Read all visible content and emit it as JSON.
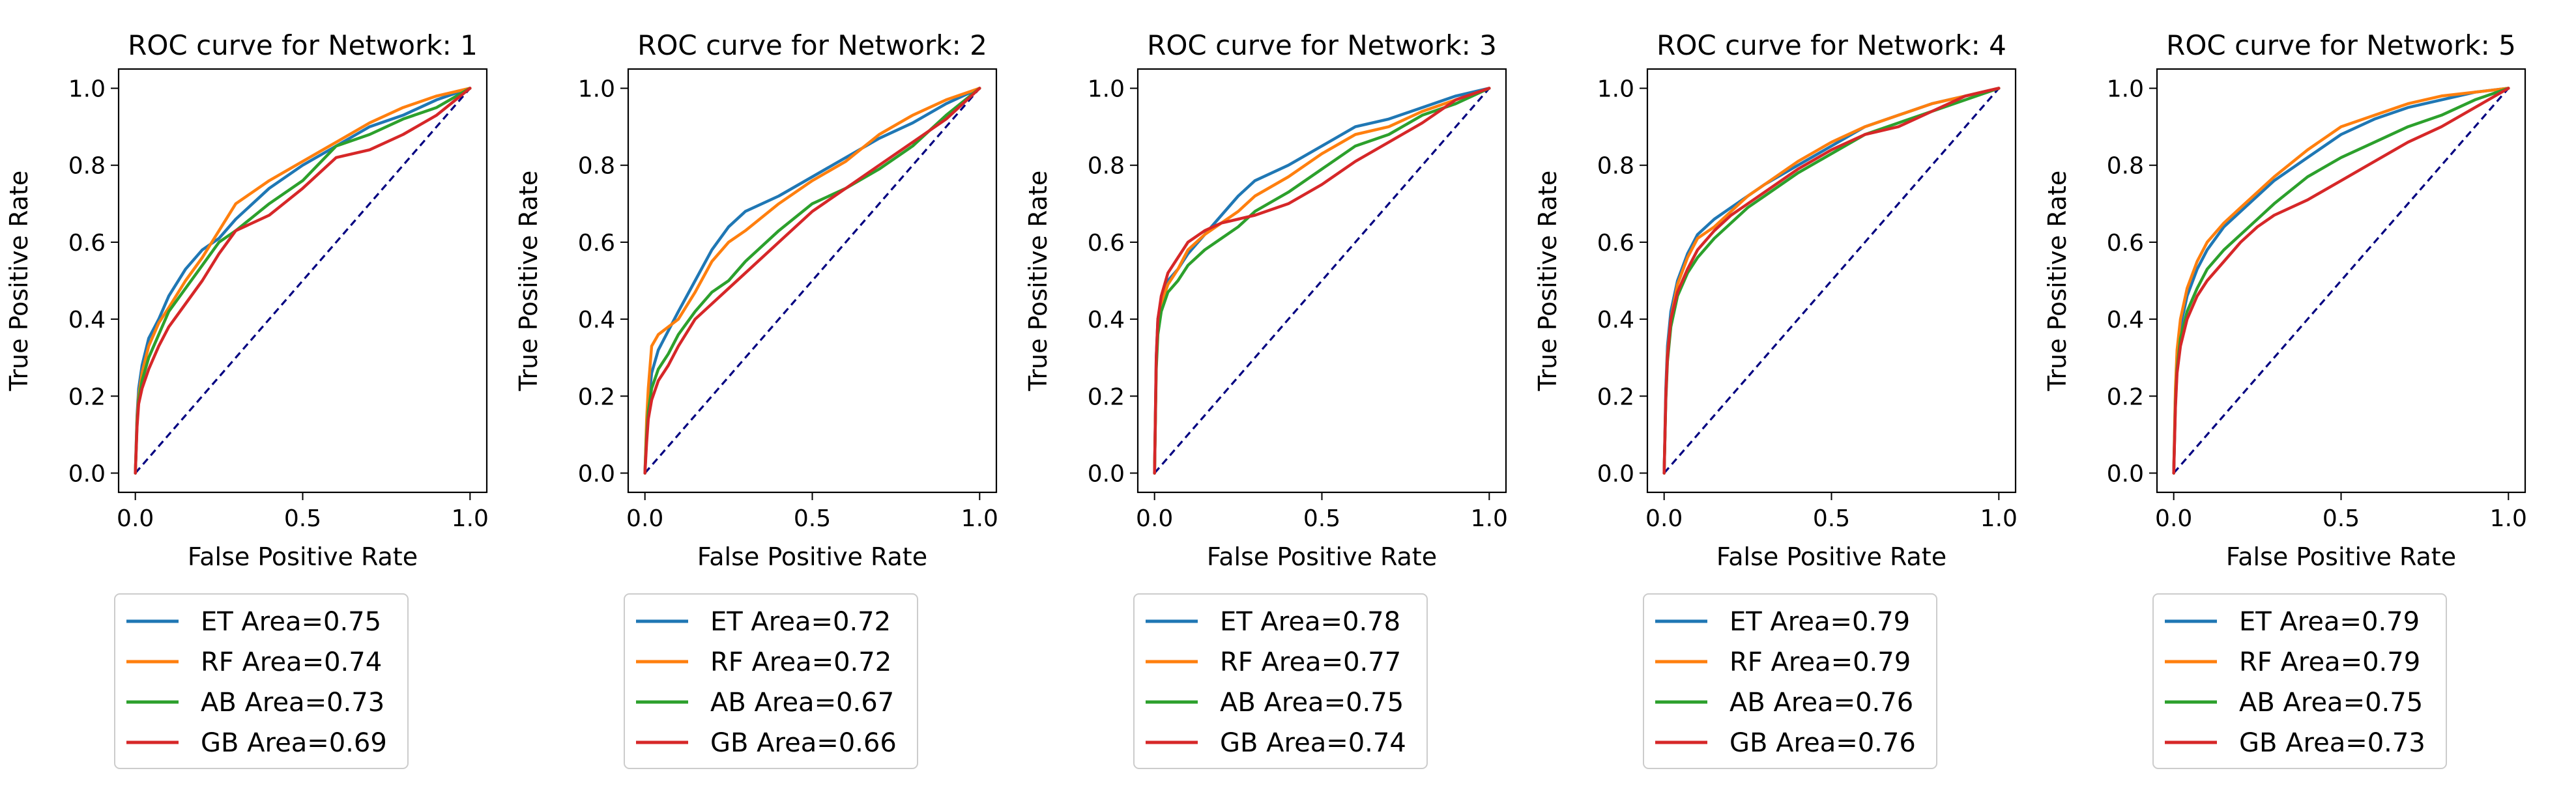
{
  "figure": {
    "background": "#ffffff",
    "diagonal_color": "#000080"
  },
  "panels_common": {
    "xlabel": "False Positive Rate",
    "ylabel": "True Positive Rate",
    "xlim": [
      -0.05,
      1.05
    ],
    "ylim": [
      -0.05,
      1.05
    ],
    "xticks": [
      "0.0",
      "0.5",
      "1.0"
    ],
    "xtick_values": [
      0.0,
      0.5,
      1.0
    ],
    "yticks": [
      "0.0",
      "0.2",
      "0.4",
      "0.6",
      "0.8",
      "1.0"
    ],
    "ytick_values": [
      0.0,
      0.2,
      0.4,
      0.6,
      0.8,
      1.0
    ],
    "legend_placement": "below plot"
  },
  "series_styles": [
    {
      "key": "ET",
      "color": "#1f77b4"
    },
    {
      "key": "RF",
      "color": "#ff7f0e"
    },
    {
      "key": "AB",
      "color": "#2ca02c"
    },
    {
      "key": "GB",
      "color": "#d62728"
    }
  ],
  "chart_data": [
    {
      "type": "line",
      "title": "ROC curve for Network: 1",
      "xlabel": "False Positive Rate",
      "ylabel": "True Positive Rate",
      "xlim": [
        -0.05,
        1.05
      ],
      "ylim": [
        -0.05,
        1.05
      ],
      "grid": false,
      "legend": "below plot",
      "diagonal": [
        [
          0,
          0
        ],
        [
          1,
          1
        ]
      ],
      "series": [
        {
          "name": "ET Area=0.75",
          "color": "#1f77b4",
          "x": [
            0,
            0.005,
            0.01,
            0.02,
            0.04,
            0.07,
            0.1,
            0.15,
            0.2,
            0.25,
            0.3,
            0.4,
            0.5,
            0.6,
            0.7,
            0.8,
            0.9,
            1.0
          ],
          "y": [
            0,
            0.15,
            0.22,
            0.28,
            0.35,
            0.4,
            0.46,
            0.53,
            0.58,
            0.61,
            0.66,
            0.74,
            0.8,
            0.85,
            0.9,
            0.93,
            0.97,
            1.0
          ]
        },
        {
          "name": "RF Area=0.74",
          "color": "#ff7f0e",
          "x": [
            0,
            0.005,
            0.01,
            0.02,
            0.04,
            0.07,
            0.1,
            0.15,
            0.2,
            0.25,
            0.3,
            0.4,
            0.5,
            0.6,
            0.7,
            0.8,
            0.9,
            1.0
          ],
          "y": [
            0,
            0.14,
            0.2,
            0.26,
            0.33,
            0.39,
            0.43,
            0.5,
            0.56,
            0.63,
            0.7,
            0.76,
            0.81,
            0.86,
            0.91,
            0.95,
            0.98,
            1.0
          ]
        },
        {
          "name": "AB Area=0.73",
          "color": "#2ca02c",
          "x": [
            0,
            0.005,
            0.01,
            0.02,
            0.04,
            0.07,
            0.1,
            0.15,
            0.2,
            0.25,
            0.3,
            0.4,
            0.5,
            0.6,
            0.7,
            0.8,
            0.9,
            1.0
          ],
          "y": [
            0,
            0.13,
            0.19,
            0.24,
            0.3,
            0.36,
            0.42,
            0.48,
            0.54,
            0.6,
            0.63,
            0.7,
            0.76,
            0.85,
            0.88,
            0.92,
            0.95,
            1.0
          ]
        },
        {
          "name": "GB Area=0.69",
          "color": "#d62728",
          "x": [
            0,
            0.005,
            0.01,
            0.02,
            0.04,
            0.07,
            0.1,
            0.15,
            0.2,
            0.25,
            0.3,
            0.4,
            0.5,
            0.6,
            0.7,
            0.8,
            0.9,
            1.0
          ],
          "y": [
            0,
            0.12,
            0.18,
            0.22,
            0.27,
            0.33,
            0.38,
            0.44,
            0.5,
            0.57,
            0.63,
            0.67,
            0.74,
            0.82,
            0.84,
            0.88,
            0.93,
            1.0
          ]
        }
      ]
    },
    {
      "type": "line",
      "title": "ROC curve for Network: 2",
      "xlabel": "False Positive Rate",
      "ylabel": "True Positive Rate",
      "xlim": [
        -0.05,
        1.05
      ],
      "ylim": [
        -0.05,
        1.05
      ],
      "grid": false,
      "legend": "below plot",
      "diagonal": [
        [
          0,
          0
        ],
        [
          1,
          1
        ]
      ],
      "series": [
        {
          "name": "ET Area=0.72",
          "color": "#1f77b4",
          "x": [
            0,
            0.005,
            0.01,
            0.02,
            0.04,
            0.07,
            0.1,
            0.15,
            0.2,
            0.25,
            0.3,
            0.4,
            0.5,
            0.6,
            0.7,
            0.8,
            0.9,
            1.0
          ],
          "y": [
            0,
            0.12,
            0.18,
            0.26,
            0.32,
            0.37,
            0.42,
            0.5,
            0.58,
            0.64,
            0.68,
            0.72,
            0.77,
            0.82,
            0.87,
            0.91,
            0.96,
            1.0
          ]
        },
        {
          "name": "RF Area=0.72",
          "color": "#ff7f0e",
          "x": [
            0,
            0.005,
            0.01,
            0.02,
            0.04,
            0.07,
            0.1,
            0.15,
            0.2,
            0.25,
            0.3,
            0.4,
            0.5,
            0.6,
            0.7,
            0.8,
            0.9,
            1.0
          ],
          "y": [
            0,
            0.14,
            0.22,
            0.33,
            0.36,
            0.38,
            0.4,
            0.47,
            0.55,
            0.6,
            0.63,
            0.7,
            0.76,
            0.81,
            0.88,
            0.93,
            0.97,
            1.0
          ]
        },
        {
          "name": "AB Area=0.67",
          "color": "#2ca02c",
          "x": [
            0,
            0.005,
            0.01,
            0.02,
            0.04,
            0.07,
            0.1,
            0.15,
            0.2,
            0.25,
            0.3,
            0.4,
            0.5,
            0.6,
            0.7,
            0.8,
            0.9,
            1.0
          ],
          "y": [
            0,
            0.1,
            0.16,
            0.22,
            0.27,
            0.31,
            0.36,
            0.42,
            0.47,
            0.5,
            0.55,
            0.63,
            0.7,
            0.74,
            0.79,
            0.85,
            0.93,
            1.0
          ]
        },
        {
          "name": "GB Area=0.66",
          "color": "#d62728",
          "x": [
            0,
            0.005,
            0.01,
            0.02,
            0.04,
            0.07,
            0.1,
            0.15,
            0.2,
            0.25,
            0.3,
            0.4,
            0.5,
            0.6,
            0.7,
            0.8,
            0.9,
            1.0
          ],
          "y": [
            0,
            0.08,
            0.14,
            0.19,
            0.24,
            0.28,
            0.33,
            0.4,
            0.44,
            0.48,
            0.52,
            0.6,
            0.68,
            0.74,
            0.8,
            0.86,
            0.92,
            1.0
          ]
        }
      ]
    },
    {
      "type": "line",
      "title": "ROC curve for Network: 3",
      "xlabel": "False Positive Rate",
      "ylabel": "True Positive Rate",
      "xlim": [
        -0.05,
        1.05
      ],
      "ylim": [
        -0.05,
        1.05
      ],
      "grid": false,
      "legend": "below plot",
      "diagonal": [
        [
          0,
          0
        ],
        [
          1,
          1
        ]
      ],
      "series": [
        {
          "name": "ET Area=0.78",
          "color": "#1f77b4",
          "x": [
            0,
            0.005,
            0.01,
            0.02,
            0.04,
            0.07,
            0.1,
            0.15,
            0.2,
            0.25,
            0.3,
            0.4,
            0.5,
            0.6,
            0.7,
            0.8,
            0.9,
            1.0
          ],
          "y": [
            0,
            0.3,
            0.4,
            0.45,
            0.5,
            0.53,
            0.57,
            0.62,
            0.67,
            0.72,
            0.76,
            0.8,
            0.85,
            0.9,
            0.92,
            0.95,
            0.98,
            1.0
          ]
        },
        {
          "name": "RF Area=0.77",
          "color": "#ff7f0e",
          "x": [
            0,
            0.005,
            0.01,
            0.02,
            0.04,
            0.07,
            0.1,
            0.15,
            0.2,
            0.25,
            0.3,
            0.4,
            0.5,
            0.6,
            0.7,
            0.8,
            0.9,
            1.0
          ],
          "y": [
            0,
            0.28,
            0.38,
            0.44,
            0.49,
            0.53,
            0.58,
            0.62,
            0.65,
            0.68,
            0.72,
            0.77,
            0.83,
            0.88,
            0.9,
            0.94,
            0.97,
            1.0
          ]
        },
        {
          "name": "AB Area=0.75",
          "color": "#2ca02c",
          "x": [
            0,
            0.005,
            0.01,
            0.02,
            0.04,
            0.07,
            0.1,
            0.15,
            0.2,
            0.25,
            0.3,
            0.4,
            0.5,
            0.6,
            0.7,
            0.8,
            0.9,
            1.0
          ],
          "y": [
            0,
            0.27,
            0.36,
            0.42,
            0.47,
            0.5,
            0.54,
            0.58,
            0.61,
            0.64,
            0.68,
            0.73,
            0.79,
            0.85,
            0.88,
            0.93,
            0.96,
            1.0
          ]
        },
        {
          "name": "GB Area=0.74",
          "color": "#d62728",
          "x": [
            0,
            0.005,
            0.01,
            0.02,
            0.04,
            0.07,
            0.1,
            0.15,
            0.2,
            0.25,
            0.3,
            0.4,
            0.5,
            0.6,
            0.7,
            0.8,
            0.9,
            1.0
          ],
          "y": [
            0,
            0.3,
            0.4,
            0.46,
            0.52,
            0.56,
            0.6,
            0.63,
            0.65,
            0.66,
            0.67,
            0.7,
            0.75,
            0.81,
            0.86,
            0.91,
            0.97,
            1.0
          ]
        }
      ]
    },
    {
      "type": "line",
      "title": "ROC curve for Network: 4",
      "xlabel": "False Positive Rate",
      "ylabel": "True Positive Rate",
      "xlim": [
        -0.05,
        1.05
      ],
      "ylim": [
        -0.05,
        1.05
      ],
      "grid": false,
      "legend": "below plot",
      "diagonal": [
        [
          0,
          0
        ],
        [
          1,
          1
        ]
      ],
      "series": [
        {
          "name": "ET Area=0.79",
          "color": "#1f77b4",
          "x": [
            0,
            0.005,
            0.01,
            0.02,
            0.04,
            0.07,
            0.1,
            0.15,
            0.2,
            0.25,
            0.3,
            0.4,
            0.5,
            0.6,
            0.7,
            0.8,
            0.9,
            1.0
          ],
          "y": [
            0,
            0.22,
            0.33,
            0.42,
            0.5,
            0.57,
            0.62,
            0.66,
            0.69,
            0.72,
            0.75,
            0.8,
            0.85,
            0.9,
            0.93,
            0.96,
            0.98,
            1.0
          ]
        },
        {
          "name": "RF Area=0.79",
          "color": "#ff7f0e",
          "x": [
            0,
            0.005,
            0.01,
            0.02,
            0.04,
            0.07,
            0.1,
            0.15,
            0.2,
            0.25,
            0.3,
            0.4,
            0.5,
            0.6,
            0.7,
            0.8,
            0.9,
            1.0
          ],
          "y": [
            0,
            0.2,
            0.31,
            0.4,
            0.49,
            0.56,
            0.61,
            0.64,
            0.68,
            0.72,
            0.75,
            0.81,
            0.86,
            0.9,
            0.93,
            0.96,
            0.98,
            1.0
          ]
        },
        {
          "name": "AB Area=0.76",
          "color": "#2ca02c",
          "x": [
            0,
            0.005,
            0.01,
            0.02,
            0.04,
            0.07,
            0.1,
            0.15,
            0.2,
            0.25,
            0.3,
            0.4,
            0.5,
            0.6,
            0.7,
            0.8,
            0.9,
            1.0
          ],
          "y": [
            0,
            0.19,
            0.29,
            0.38,
            0.46,
            0.52,
            0.56,
            0.61,
            0.65,
            0.69,
            0.72,
            0.78,
            0.83,
            0.88,
            0.91,
            0.94,
            0.97,
            1.0
          ]
        },
        {
          "name": "GB Area=0.76",
          "color": "#d62728",
          "x": [
            0,
            0.005,
            0.01,
            0.02,
            0.04,
            0.07,
            0.1,
            0.15,
            0.2,
            0.25,
            0.3,
            0.4,
            0.5,
            0.6,
            0.7,
            0.8,
            0.9,
            1.0
          ],
          "y": [
            0,
            0.2,
            0.3,
            0.4,
            0.47,
            0.53,
            0.58,
            0.63,
            0.67,
            0.7,
            0.73,
            0.79,
            0.84,
            0.88,
            0.9,
            0.94,
            0.98,
            1.0
          ]
        }
      ]
    },
    {
      "type": "line",
      "title": "ROC curve for Network: 5",
      "xlabel": "False Positive Rate",
      "ylabel": "True Positive Rate",
      "xlim": [
        -0.05,
        1.05
      ],
      "ylim": [
        -0.05,
        1.05
      ],
      "grid": false,
      "legend": "below plot",
      "diagonal": [
        [
          0,
          0
        ],
        [
          1,
          1
        ]
      ],
      "series": [
        {
          "name": "ET Area=0.79",
          "color": "#1f77b4",
          "x": [
            0,
            0.005,
            0.01,
            0.02,
            0.04,
            0.07,
            0.1,
            0.15,
            0.2,
            0.25,
            0.3,
            0.4,
            0.5,
            0.6,
            0.7,
            0.8,
            0.9,
            1.0
          ],
          "y": [
            0,
            0.2,
            0.3,
            0.38,
            0.46,
            0.53,
            0.58,
            0.64,
            0.68,
            0.72,
            0.76,
            0.82,
            0.88,
            0.92,
            0.95,
            0.97,
            0.99,
            1.0
          ]
        },
        {
          "name": "RF Area=0.79",
          "color": "#ff7f0e",
          "x": [
            0,
            0.005,
            0.01,
            0.02,
            0.04,
            0.07,
            0.1,
            0.15,
            0.2,
            0.25,
            0.3,
            0.4,
            0.5,
            0.6,
            0.7,
            0.8,
            0.9,
            1.0
          ],
          "y": [
            0,
            0.22,
            0.32,
            0.4,
            0.48,
            0.55,
            0.6,
            0.65,
            0.69,
            0.73,
            0.77,
            0.84,
            0.9,
            0.93,
            0.96,
            0.98,
            0.99,
            1.0
          ]
        },
        {
          "name": "AB Area=0.75",
          "color": "#2ca02c",
          "x": [
            0,
            0.005,
            0.01,
            0.02,
            0.04,
            0.07,
            0.1,
            0.15,
            0.2,
            0.25,
            0.3,
            0.4,
            0.5,
            0.6,
            0.7,
            0.8,
            0.9,
            1.0
          ],
          "y": [
            0,
            0.18,
            0.27,
            0.35,
            0.42,
            0.48,
            0.53,
            0.58,
            0.62,
            0.66,
            0.7,
            0.77,
            0.82,
            0.86,
            0.9,
            0.93,
            0.97,
            1.0
          ]
        },
        {
          "name": "GB Area=0.73",
          "color": "#d62728",
          "x": [
            0,
            0.005,
            0.01,
            0.02,
            0.04,
            0.07,
            0.1,
            0.15,
            0.2,
            0.25,
            0.3,
            0.4,
            0.5,
            0.6,
            0.7,
            0.8,
            0.9,
            1.0
          ],
          "y": [
            0,
            0.17,
            0.26,
            0.33,
            0.4,
            0.46,
            0.5,
            0.55,
            0.6,
            0.64,
            0.67,
            0.71,
            0.76,
            0.81,
            0.86,
            0.9,
            0.95,
            1.0
          ]
        }
      ]
    }
  ]
}
